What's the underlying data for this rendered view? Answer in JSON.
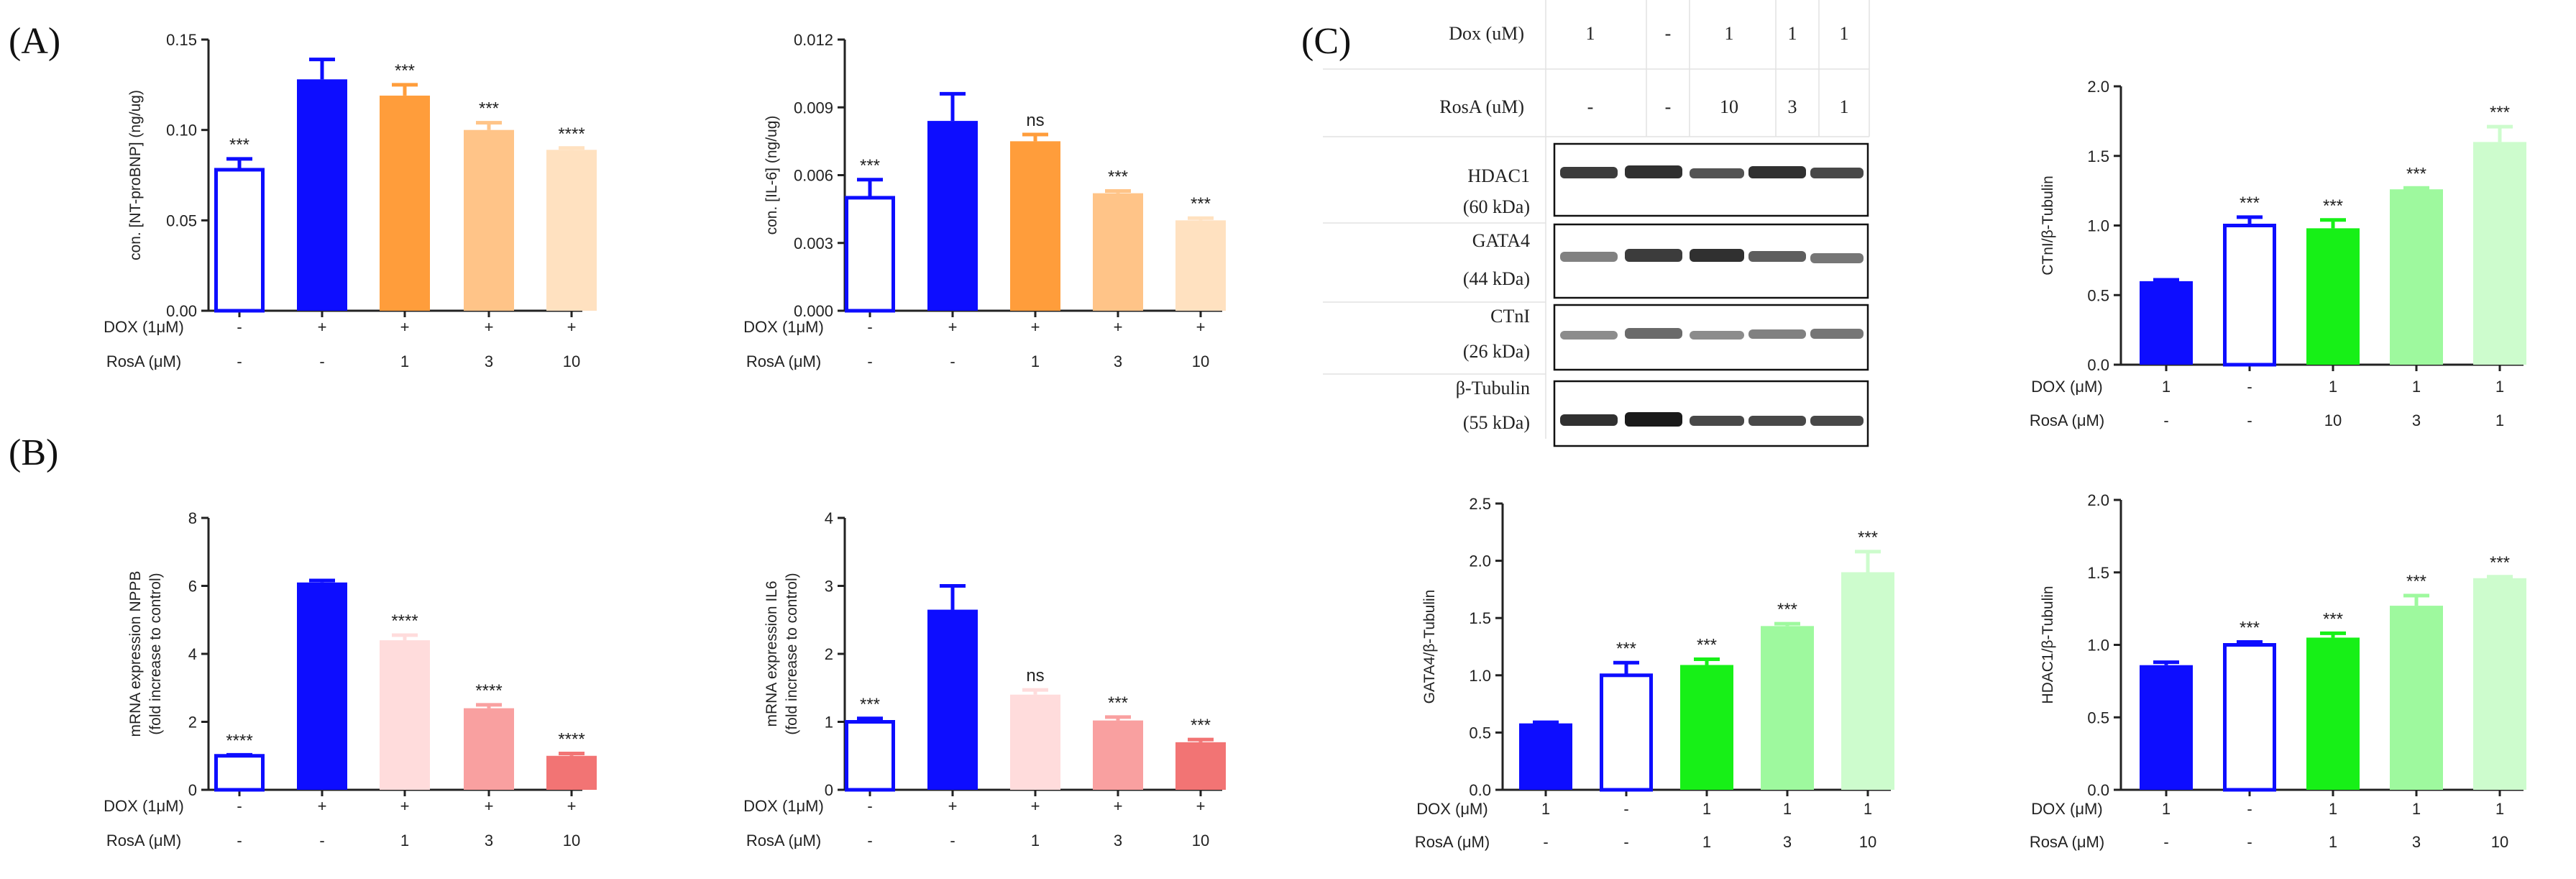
{
  "panel_labels": [
    "(A)",
    "(B)",
    "(C)"
  ],
  "western_blot": {
    "header_rows": [
      {
        "label": "Dox (uM)",
        "values": [
          "1",
          "-",
          "1",
          "1",
          "1"
        ]
      },
      {
        "label": "RosA (uM)",
        "values": [
          "-",
          "-",
          "10",
          "3",
          "1"
        ]
      }
    ],
    "proteins": [
      {
        "name": "HDAC1",
        "kda": "(60 kDa)"
      },
      {
        "name": "GATA4",
        "kda": "(44 kDa)"
      },
      {
        "name": "CTnI",
        "kda": "(26 kDa)"
      },
      {
        "name": "β-Tubulin",
        "kda": "(55 kDa)"
      }
    ]
  },
  "chart_data": [
    {
      "id": "A1",
      "type": "bar",
      "categories": [
        "DOX-/RosA-",
        "DOX+/RosA-",
        "DOX+/RosA1",
        "DOX+/RosA3",
        "DOX+/RosA10"
      ],
      "values": [
        0.078,
        0.128,
        0.119,
        0.1,
        0.089
      ],
      "errors": [
        0.006,
        0.011,
        0.006,
        0.004,
        0.001
      ],
      "significance": [
        "***",
        "",
        "***",
        "***",
        "****"
      ],
      "ylabel": "con. [NT-proBNP] (ng/ug)",
      "ylim": [
        0,
        0.15
      ],
      "yticks": [
        "0.00",
        "0.05",
        "0.10",
        "0.15"
      ],
      "colors": [
        "#0d0dff",
        "#0d0dff",
        "#ff9d3b",
        "#ffc488",
        "#ffe1c0"
      ],
      "hollow": [
        true,
        false,
        false,
        false,
        false
      ],
      "conditions": [
        {
          "label": "DOX (1μM)",
          "values": [
            "-",
            "+",
            "+",
            "+",
            "+"
          ]
        },
        {
          "label": "RosA (μM)",
          "values": [
            "-",
            "-",
            "1",
            "3",
            "10"
          ]
        }
      ]
    },
    {
      "id": "A2",
      "type": "bar",
      "categories": [
        "DOX-/RosA-",
        "DOX+/RosA-",
        "DOX+/RosA1",
        "DOX+/RosA3",
        "DOX+/RosA10"
      ],
      "values": [
        0.005,
        0.0084,
        0.0075,
        0.0052,
        0.004
      ],
      "errors": [
        0.0008,
        0.0012,
        0.0003,
        0.0001,
        0.0001
      ],
      "significance": [
        "***",
        "",
        "ns",
        "***",
        "***"
      ],
      "ylabel": "con. [IL-6] (ng/ug)",
      "ylim": [
        0,
        0.012
      ],
      "yticks": [
        "0.000",
        "0.003",
        "0.006",
        "0.009",
        "0.012"
      ],
      "colors": [
        "#0d0dff",
        "#0d0dff",
        "#ff9d3b",
        "#ffc488",
        "#ffe1c0"
      ],
      "hollow": [
        true,
        false,
        false,
        false,
        false
      ],
      "conditions": [
        {
          "label": "DOX (1μM)",
          "values": [
            "-",
            "+",
            "+",
            "+",
            "+"
          ]
        },
        {
          "label": "RosA (μM)",
          "values": [
            "-",
            "-",
            "1",
            "3",
            "10"
          ]
        }
      ]
    },
    {
      "id": "B1",
      "type": "bar",
      "categories": [
        "DOX-/RosA-",
        "DOX+/RosA-",
        "DOX+/RosA1",
        "DOX+/RosA3",
        "DOX+/RosA10"
      ],
      "values": [
        1.0,
        6.1,
        4.4,
        2.4,
        1.0
      ],
      "errors": [
        0.03,
        0.06,
        0.15,
        0.1,
        0.07
      ],
      "significance": [
        "****",
        "",
        "****",
        "****",
        "****"
      ],
      "ylabel": [
        "mRNA expression NPPB",
        "(fold increase to control)"
      ],
      "ylim": [
        0,
        8
      ],
      "yticks": [
        "0",
        "2",
        "4",
        "6",
        "8"
      ],
      "colors": [
        "#0d0dff",
        "#0d0dff",
        "#ffdcdc",
        "#f9a0a0",
        "#f27474"
      ],
      "hollow": [
        true,
        false,
        false,
        false,
        false
      ],
      "conditions": [
        {
          "label": "DOX (1μM)",
          "values": [
            "-",
            "+",
            "+",
            "+",
            "+"
          ]
        },
        {
          "label": "RosA (μM)",
          "values": [
            "-",
            "-",
            "1",
            "3",
            "10"
          ]
        }
      ]
    },
    {
      "id": "B2",
      "type": "bar",
      "categories": [
        "DOX-/RosA-",
        "DOX+/RosA-",
        "DOX+/RosA1",
        "DOX+/RosA3",
        "DOX+/RosA10"
      ],
      "values": [
        1.0,
        2.65,
        1.4,
        1.02,
        0.7
      ],
      "errors": [
        0.05,
        0.35,
        0.07,
        0.05,
        0.04
      ],
      "significance": [
        "***",
        "",
        "ns",
        "***",
        "***"
      ],
      "ylabel": [
        "mRNA expression IL6",
        "(fold increase to control)"
      ],
      "ylim": [
        0,
        4
      ],
      "yticks": [
        "0",
        "1",
        "2",
        "3",
        "4"
      ],
      "colors": [
        "#0d0dff",
        "#0d0dff",
        "#ffdcdc",
        "#f9a0a0",
        "#f27474"
      ],
      "hollow": [
        true,
        false,
        false,
        false,
        false
      ],
      "conditions": [
        {
          "label": "DOX (1μM)",
          "values": [
            "-",
            "+",
            "+",
            "+",
            "+"
          ]
        },
        {
          "label": "RosA (μM)",
          "values": [
            "-",
            "-",
            "1",
            "3",
            "10"
          ]
        }
      ]
    },
    {
      "id": "C1",
      "type": "bar",
      "categories": [
        "DOX1/RosA-",
        "DOX-/RosA-",
        "DOX1/RosA10",
        "DOX1/RosA3",
        "DOX1/RosA1"
      ],
      "values": [
        0.6,
        1.0,
        0.98,
        1.26,
        1.6
      ],
      "errors": [
        0.01,
        0.06,
        0.06,
        0.01,
        0.11
      ],
      "significance": [
        "",
        "***",
        "***",
        "***",
        "***"
      ],
      "ylabel": "CTnI/β-Tubulin",
      "ylim": [
        0,
        2.0
      ],
      "yticks": [
        "0.0",
        "0.5",
        "1.0",
        "1.5",
        "2.0"
      ],
      "colors": [
        "#0d0dff",
        "#0d0dff",
        "#17f017",
        "#9ef99e",
        "#cdfccd"
      ],
      "hollow": [
        false,
        true,
        false,
        false,
        false
      ],
      "conditions": [
        {
          "label": "DOX (μM)",
          "values": [
            "1",
            "-",
            "1",
            "1",
            "1"
          ]
        },
        {
          "label": "RosA (μM)",
          "values": [
            "-",
            "-",
            "10",
            "3",
            "1"
          ]
        }
      ]
    },
    {
      "id": "C2",
      "type": "bar",
      "categories": [
        "DOX1/RosA-",
        "DOX-/RosA-",
        "DOX1/RosA1",
        "DOX1/RosA3",
        "DOX1/RosA10"
      ],
      "values": [
        0.58,
        1.0,
        1.09,
        1.43,
        1.9
      ],
      "errors": [
        0.01,
        0.11,
        0.05,
        0.02,
        0.18
      ],
      "significance": [
        "",
        "***",
        "***",
        "***",
        "***"
      ],
      "ylabel": "GATA4/β-Tubulin",
      "ylim": [
        0,
        2.5
      ],
      "yticks": [
        "0.0",
        "0.5",
        "1.0",
        "1.5",
        "2.0",
        "2.5"
      ],
      "colors": [
        "#0d0dff",
        "#0d0dff",
        "#17f017",
        "#9ef99e",
        "#cdfccd"
      ],
      "hollow": [
        false,
        true,
        false,
        false,
        false
      ],
      "conditions": [
        {
          "label": "DOX (μM)",
          "values": [
            "1",
            "-",
            "1",
            "1",
            "1"
          ]
        },
        {
          "label": "RosA (μM)",
          "values": [
            "-",
            "-",
            "1",
            "3",
            "10"
          ]
        }
      ]
    },
    {
      "id": "C3",
      "type": "bar",
      "categories": [
        "DOX1/RosA-",
        "DOX-/RosA-",
        "DOX1/RosA1",
        "DOX1/RosA3",
        "DOX1/RosA10"
      ],
      "values": [
        0.86,
        1.0,
        1.05,
        1.27,
        1.46
      ],
      "errors": [
        0.02,
        0.02,
        0.03,
        0.07,
        0.01
      ],
      "significance": [
        "",
        "***",
        "***",
        "***",
        "***"
      ],
      "ylabel": "HDAC1/β-Tubulin",
      "ylim": [
        0,
        2.0
      ],
      "yticks": [
        "0.0",
        "0.5",
        "1.0",
        "1.5",
        "2.0"
      ],
      "colors": [
        "#0d0dff",
        "#0d0dff",
        "#17f017",
        "#9ef99e",
        "#cdfccd"
      ],
      "hollow": [
        false,
        true,
        false,
        false,
        false
      ],
      "conditions": [
        {
          "label": "DOX (μM)",
          "values": [
            "1",
            "-",
            "1",
            "1",
            "1"
          ]
        },
        {
          "label": "RosA (μM)",
          "values": [
            "-",
            "-",
            "1",
            "3",
            "10"
          ]
        }
      ]
    }
  ]
}
